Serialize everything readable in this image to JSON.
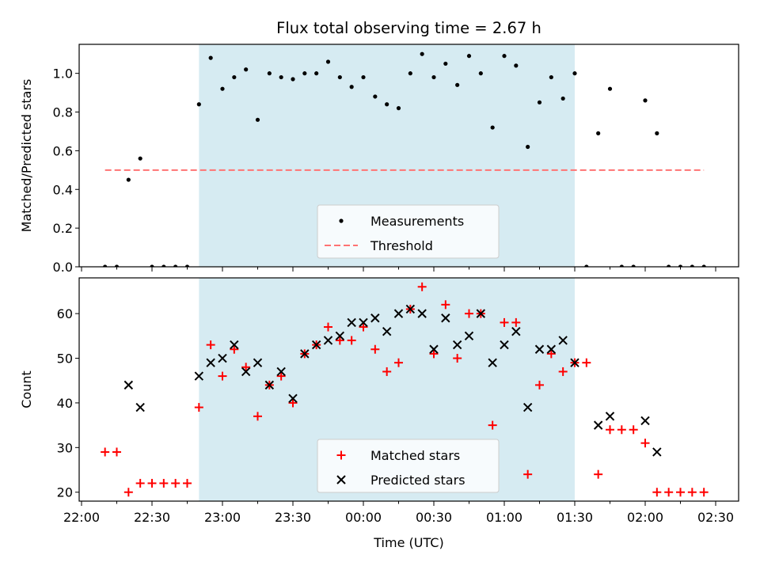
{
  "chart_data": [
    {
      "type": "scatter",
      "title": "Flux total observing time = 2.67 h",
      "xlabel": "",
      "ylabel": "Matched/Predicted stars",
      "xlim": [
        "22:00",
        "02:30"
      ],
      "ylim": [
        0,
        1.15
      ],
      "yticks": [
        "0.0",
        "0.2",
        "0.4",
        "0.6",
        "0.8",
        "1.0"
      ],
      "shaded_region": {
        "start": "22:50",
        "end": "01:30"
      },
      "legend_position": "lower center",
      "series": [
        {
          "name": "Measurements",
          "marker": "dot",
          "color": "#000000",
          "points": [
            [
              "22:10",
              0.0
            ],
            [
              "22:15",
              0.0
            ],
            [
              "22:20",
              0.45
            ],
            [
              "22:25",
              0.56
            ],
            [
              "22:30",
              0.0
            ],
            [
              "22:35",
              0.0
            ],
            [
              "22:40",
              0.0
            ],
            [
              "22:45",
              0.0
            ],
            [
              "22:50",
              0.84
            ],
            [
              "22:55",
              1.08
            ],
            [
              "23:00",
              0.92
            ],
            [
              "23:05",
              0.98
            ],
            [
              "23:10",
              1.02
            ],
            [
              "23:15",
              0.76
            ],
            [
              "23:20",
              1.0
            ],
            [
              "23:25",
              0.98
            ],
            [
              "23:30",
              0.97
            ],
            [
              "23:35",
              1.0
            ],
            [
              "23:40",
              1.0
            ],
            [
              "23:45",
              1.06
            ],
            [
              "23:50",
              0.98
            ],
            [
              "23:55",
              0.93
            ],
            [
              "00:00",
              0.98
            ],
            [
              "00:05",
              0.88
            ],
            [
              "00:10",
              0.84
            ],
            [
              "00:15",
              0.82
            ],
            [
              "00:20",
              1.0
            ],
            [
              "00:25",
              1.1
            ],
            [
              "00:30",
              0.98
            ],
            [
              "00:35",
              1.05
            ],
            [
              "00:40",
              0.94
            ],
            [
              "00:45",
              1.09
            ],
            [
              "00:50",
              1.0
            ],
            [
              "00:55",
              0.72
            ],
            [
              "01:00",
              1.09
            ],
            [
              "01:05",
              1.04
            ],
            [
              "01:10",
              0.62
            ],
            [
              "01:15",
              0.85
            ],
            [
              "01:20",
              0.98
            ],
            [
              "01:25",
              0.87
            ],
            [
              "01:30",
              1.0
            ],
            [
              "01:35",
              0.0
            ],
            [
              "01:40",
              0.69
            ],
            [
              "01:45",
              0.92
            ],
            [
              "01:50",
              0.0
            ],
            [
              "01:55",
              0.0
            ],
            [
              "02:00",
              0.86
            ],
            [
              "02:05",
              0.69
            ],
            [
              "02:10",
              0.0
            ],
            [
              "02:15",
              0.0
            ],
            [
              "02:20",
              0.0
            ],
            [
              "02:25",
              0.0
            ]
          ]
        },
        {
          "name": "Threshold",
          "marker": "dashed-line",
          "color": "#ff7373",
          "points": [
            [
              "22:10",
              0.5
            ],
            [
              "02:25",
              0.5
            ]
          ]
        }
      ]
    },
    {
      "type": "scatter",
      "title": "",
      "xlabel": "Time (UTC)",
      "ylabel": "Count",
      "xlim": [
        "22:00",
        "02:30"
      ],
      "ylim": [
        18,
        68
      ],
      "xticks": [
        "22:00",
        "22:30",
        "23:00",
        "23:30",
        "00:00",
        "00:30",
        "01:00",
        "01:30",
        "02:00",
        "02:30"
      ],
      "yticks": [
        "20",
        "30",
        "40",
        "50",
        "60"
      ],
      "shaded_region": {
        "start": "22:50",
        "end": "01:30"
      },
      "legend_position": "lower center",
      "series": [
        {
          "name": "Matched stars",
          "marker": "plus",
          "color": "#ff0000",
          "points": [
            [
              "22:10",
              29
            ],
            [
              "22:15",
              29
            ],
            [
              "22:20",
              20
            ],
            [
              "22:25",
              22
            ],
            [
              "22:30",
              22
            ],
            [
              "22:35",
              22
            ],
            [
              "22:40",
              22
            ],
            [
              "22:45",
              22
            ],
            [
              "22:50",
              39
            ],
            [
              "22:55",
              53
            ],
            [
              "23:00",
              46
            ],
            [
              "23:05",
              52
            ],
            [
              "23:10",
              48
            ],
            [
              "23:15",
              37
            ],
            [
              "23:20",
              44
            ],
            [
              "23:25",
              46
            ],
            [
              "23:30",
              40
            ],
            [
              "23:35",
              51
            ],
            [
              "23:40",
              53
            ],
            [
              "23:45",
              57
            ],
            [
              "23:50",
              54
            ],
            [
              "23:55",
              54
            ],
            [
              "00:00",
              57
            ],
            [
              "00:05",
              52
            ],
            [
              "00:10",
              47
            ],
            [
              "00:15",
              49
            ],
            [
              "00:20",
              61
            ],
            [
              "00:25",
              66
            ],
            [
              "00:30",
              51
            ],
            [
              "00:35",
              62
            ],
            [
              "00:40",
              50
            ],
            [
              "00:45",
              60
            ],
            [
              "00:50",
              60
            ],
            [
              "00:55",
              35
            ],
            [
              "01:00",
              58
            ],
            [
              "01:05",
              58
            ],
            [
              "01:10",
              24
            ],
            [
              "01:15",
              44
            ],
            [
              "01:20",
              51
            ],
            [
              "01:25",
              47
            ],
            [
              "01:30",
              49
            ],
            [
              "01:35",
              49
            ],
            [
              "01:40",
              24
            ],
            [
              "01:45",
              34
            ],
            [
              "01:50",
              34
            ],
            [
              "01:55",
              34
            ],
            [
              "02:00",
              31
            ],
            [
              "02:05",
              20
            ],
            [
              "02:10",
              20
            ],
            [
              "02:15",
              20
            ],
            [
              "02:20",
              20
            ],
            [
              "02:25",
              20
            ]
          ]
        },
        {
          "name": "Predicted stars",
          "marker": "x",
          "color": "#000000",
          "points": [
            [
              "22:20",
              44
            ],
            [
              "22:25",
              39
            ],
            [
              "22:50",
              46
            ],
            [
              "22:55",
              49
            ],
            [
              "23:00",
              50
            ],
            [
              "23:05",
              53
            ],
            [
              "23:10",
              47
            ],
            [
              "23:15",
              49
            ],
            [
              "23:20",
              44
            ],
            [
              "23:25",
              47
            ],
            [
              "23:30",
              41
            ],
            [
              "23:35",
              51
            ],
            [
              "23:40",
              53
            ],
            [
              "23:45",
              54
            ],
            [
              "23:50",
              55
            ],
            [
              "23:55",
              58
            ],
            [
              "00:00",
              58
            ],
            [
              "00:05",
              59
            ],
            [
              "00:10",
              56
            ],
            [
              "00:15",
              60
            ],
            [
              "00:20",
              61
            ],
            [
              "00:25",
              60
            ],
            [
              "00:30",
              52
            ],
            [
              "00:35",
              59
            ],
            [
              "00:40",
              53
            ],
            [
              "00:45",
              55
            ],
            [
              "00:50",
              60
            ],
            [
              "00:55",
              49
            ],
            [
              "01:00",
              53
            ],
            [
              "01:05",
              56
            ],
            [
              "01:10",
              39
            ],
            [
              "01:15",
              52
            ],
            [
              "01:20",
              52
            ],
            [
              "01:25",
              54
            ],
            [
              "01:30",
              49
            ],
            [
              "01:40",
              35
            ],
            [
              "01:45",
              37
            ],
            [
              "02:00",
              36
            ],
            [
              "02:05",
              29
            ]
          ]
        }
      ]
    }
  ]
}
